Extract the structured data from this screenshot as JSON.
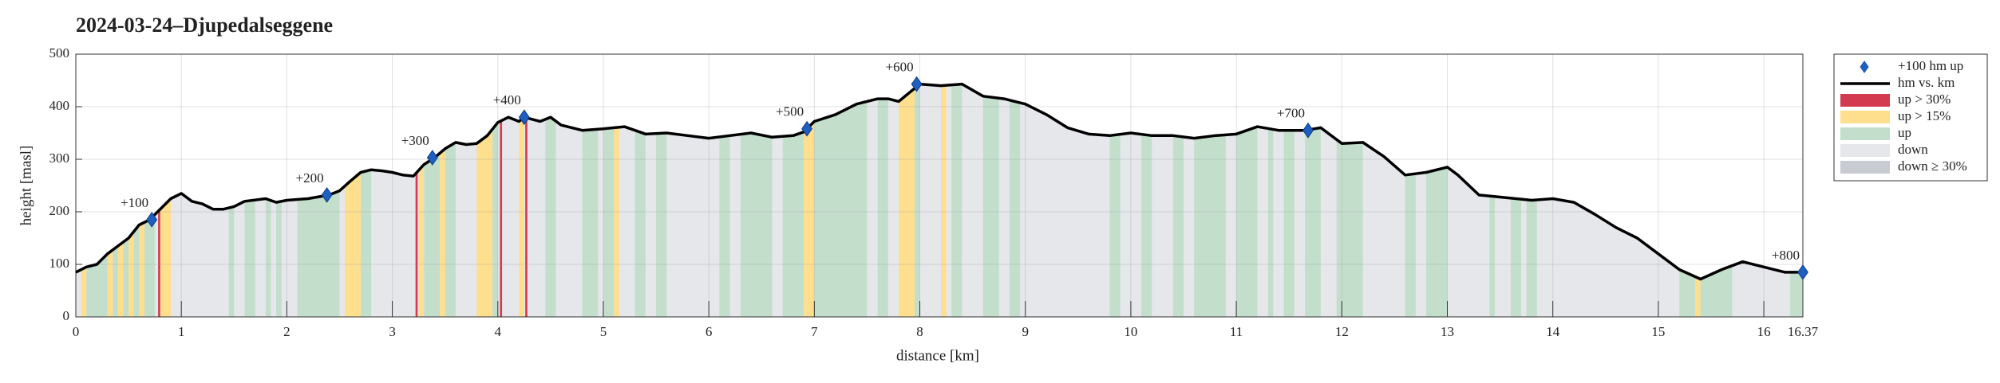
{
  "chart_data": {
    "type": "line",
    "title": "2024-03-24–Djupedalseggene",
    "xlabel": "distance [km]",
    "ylabel": "height [masl]",
    "xlim": [
      0,
      16.37
    ],
    "ylim": [
      0,
      500
    ],
    "xticks": [
      0,
      1,
      2,
      3,
      4,
      5,
      6,
      7,
      8,
      9,
      10,
      11,
      12,
      13,
      14,
      15,
      16,
      16.37
    ],
    "yticks": [
      0,
      100,
      200,
      300,
      400,
      500
    ],
    "grid": true,
    "legend_position": "outside right",
    "series": [
      {
        "name": "hm vs. km",
        "color": "#000000",
        "x": [
          0,
          0.1,
          0.2,
          0.3,
          0.4,
          0.5,
          0.6,
          0.7,
          0.8,
          0.9,
          1.0,
          1.1,
          1.2,
          1.3,
          1.4,
          1.5,
          1.6,
          1.8,
          1.9,
          2.0,
          2.2,
          2.4,
          2.5,
          2.6,
          2.7,
          2.8,
          2.9,
          3.0,
          3.1,
          3.2,
          3.3,
          3.4,
          3.5,
          3.6,
          3.7,
          3.8,
          3.9,
          4.0,
          4.1,
          4.2,
          4.25,
          4.4,
          4.5,
          4.6,
          4.8,
          5.0,
          5.2,
          5.4,
          5.6,
          5.8,
          6.0,
          6.2,
          6.4,
          6.6,
          6.8,
          6.9,
          7.0,
          7.2,
          7.4,
          7.6,
          7.7,
          7.8,
          8.0,
          8.2,
          8.4,
          8.6,
          8.8,
          9.0,
          9.2,
          9.4,
          9.6,
          9.8,
          10.0,
          10.2,
          10.4,
          10.6,
          10.8,
          11.0,
          11.2,
          11.4,
          11.65,
          11.8,
          12.0,
          12.2,
          12.4,
          12.6,
          12.8,
          13.0,
          13.1,
          13.3,
          13.5,
          13.8,
          14.0,
          14.2,
          14.4,
          14.6,
          14.8,
          15.0,
          15.2,
          15.4,
          15.6,
          15.8,
          16.0,
          16.2,
          16.37
        ],
        "values": [
          85,
          95,
          100,
          120,
          135,
          150,
          175,
          185,
          205,
          225,
          235,
          220,
          215,
          205,
          205,
          210,
          220,
          225,
          218,
          222,
          225,
          232,
          240,
          258,
          275,
          280,
          278,
          275,
          270,
          268,
          290,
          303,
          320,
          332,
          328,
          330,
          345,
          370,
          380,
          372,
          380,
          372,
          380,
          365,
          355,
          358,
          362,
          348,
          350,
          345,
          340,
          345,
          350,
          342,
          345,
          352,
          372,
          385,
          405,
          415,
          415,
          410,
          443,
          440,
          443,
          420,
          415,
          405,
          385,
          360,
          348,
          345,
          350,
          345,
          345,
          340,
          345,
          348,
          362,
          355,
          355,
          360,
          330,
          332,
          305,
          270,
          275,
          285,
          270,
          232,
          228,
          222,
          225,
          218,
          195,
          170,
          150,
          120,
          90,
          72,
          90,
          105,
          95,
          85,
          85
        ]
      }
    ],
    "markers": {
      "name": "+100 hm up",
      "color": "#1f5fbf",
      "x": [
        0.72,
        2.38,
        3.38,
        4.25,
        6.93,
        7.97,
        11.68,
        16.37
      ],
      "values": [
        185,
        232,
        303,
        380,
        358,
        443,
        355,
        85
      ],
      "labels": [
        "+100",
        "+200",
        "+300",
        "+400",
        "+500",
        "+600",
        "+700",
        "+800"
      ]
    },
    "legend": [
      {
        "name": "up > 30%",
        "color": "#d43a4f"
      },
      {
        "name": "up > 15%",
        "color": "#fddf8e"
      },
      {
        "name": "up",
        "color": "#c3dfcc"
      },
      {
        "name": "down",
        "color": "#e6e7eb"
      },
      {
        "name": "down ≥ 30%",
        "color": "#c8cbd1"
      }
    ],
    "bands": [
      {
        "x0": 0.1,
        "x1": 0.3,
        "kind": "up"
      },
      {
        "x0": 0.35,
        "x1": 0.4,
        "kind": "up"
      },
      {
        "x0": 0.45,
        "x1": 0.5,
        "kind": "up"
      },
      {
        "x0": 0.55,
        "x1": 0.6,
        "kind": "up"
      },
      {
        "x0": 0.65,
        "x1": 0.75,
        "kind": "up"
      },
      {
        "x0": 0.05,
        "x1": 0.1,
        "kind": "up > 15%"
      },
      {
        "x0": 0.3,
        "x1": 0.35,
        "kind": "up > 15%"
      },
      {
        "x0": 0.4,
        "x1": 0.45,
        "kind": "up > 15%"
      },
      {
        "x0": 0.5,
        "x1": 0.55,
        "kind": "up > 15%"
      },
      {
        "x0": 0.6,
        "x1": 0.65,
        "kind": "up > 15%"
      },
      {
        "x0": 0.8,
        "x1": 0.9,
        "kind": "up > 15%"
      },
      {
        "x0": 0.78,
        "x1": 0.8,
        "kind": "up > 30%"
      },
      {
        "x0": 1.45,
        "x1": 1.5,
        "kind": "up"
      },
      {
        "x0": 1.6,
        "x1": 1.7,
        "kind": "up"
      },
      {
        "x0": 1.8,
        "x1": 1.85,
        "kind": "up"
      },
      {
        "x0": 1.9,
        "x1": 1.95,
        "kind": "up"
      },
      {
        "x0": 2.1,
        "x1": 2.5,
        "kind": "up"
      },
      {
        "x0": 2.55,
        "x1": 2.7,
        "kind": "up > 15%"
      },
      {
        "x0": 2.7,
        "x1": 2.8,
        "kind": "up"
      },
      {
        "x0": 3.22,
        "x1": 3.24,
        "kind": "up > 30%"
      },
      {
        "x0": 3.25,
        "x1": 3.3,
        "kind": "up > 15%"
      },
      {
        "x0": 3.3,
        "x1": 3.45,
        "kind": "up"
      },
      {
        "x0": 3.45,
        "x1": 3.5,
        "kind": "up > 15%"
      },
      {
        "x0": 3.5,
        "x1": 3.6,
        "kind": "up"
      },
      {
        "x0": 3.8,
        "x1": 3.95,
        "kind": "up > 15%"
      },
      {
        "x0": 3.95,
        "x1": 4.0,
        "kind": "up"
      },
      {
        "x0": 4.02,
        "x1": 4.04,
        "kind": "up > 30%"
      },
      {
        "x0": 4.2,
        "x1": 4.25,
        "kind": "up > 15%"
      },
      {
        "x0": 4.26,
        "x1": 4.28,
        "kind": "up > 30%"
      },
      {
        "x0": 4.45,
        "x1": 4.55,
        "kind": "up"
      },
      {
        "x0": 4.8,
        "x1": 4.95,
        "kind": "up"
      },
      {
        "x0": 5.0,
        "x1": 5.1,
        "kind": "up"
      },
      {
        "x0": 5.1,
        "x1": 5.15,
        "kind": "up > 15%"
      },
      {
        "x0": 5.3,
        "x1": 5.4,
        "kind": "up"
      },
      {
        "x0": 5.5,
        "x1": 5.6,
        "kind": "up"
      },
      {
        "x0": 6.1,
        "x1": 6.2,
        "kind": "up"
      },
      {
        "x0": 6.3,
        "x1": 6.6,
        "kind": "up"
      },
      {
        "x0": 6.7,
        "x1": 6.9,
        "kind": "up"
      },
      {
        "x0": 6.9,
        "x1": 7.0,
        "kind": "up > 15%"
      },
      {
        "x0": 7.0,
        "x1": 7.5,
        "kind": "up"
      },
      {
        "x0": 7.6,
        "x1": 7.7,
        "kind": "up"
      },
      {
        "x0": 7.8,
        "x1": 7.95,
        "kind": "up > 15%"
      },
      {
        "x0": 7.95,
        "x1": 8.0,
        "kind": "up"
      },
      {
        "x0": 8.2,
        "x1": 8.25,
        "kind": "up > 15%"
      },
      {
        "x0": 8.3,
        "x1": 8.4,
        "kind": "up"
      },
      {
        "x0": 8.6,
        "x1": 8.75,
        "kind": "up"
      },
      {
        "x0": 8.85,
        "x1": 8.95,
        "kind": "up"
      },
      {
        "x0": 9.8,
        "x1": 9.9,
        "kind": "up"
      },
      {
        "x0": 10.1,
        "x1": 10.2,
        "kind": "up"
      },
      {
        "x0": 10.4,
        "x1": 10.5,
        "kind": "up"
      },
      {
        "x0": 10.6,
        "x1": 10.9,
        "kind": "up"
      },
      {
        "x0": 11.0,
        "x1": 11.2,
        "kind": "up"
      },
      {
        "x0": 11.3,
        "x1": 11.35,
        "kind": "up"
      },
      {
        "x0": 11.45,
        "x1": 11.55,
        "kind": "up"
      },
      {
        "x0": 11.65,
        "x1": 11.8,
        "kind": "up"
      },
      {
        "x0": 11.95,
        "x1": 12.2,
        "kind": "up"
      },
      {
        "x0": 12.6,
        "x1": 12.7,
        "kind": "up"
      },
      {
        "x0": 12.8,
        "x1": 13.0,
        "kind": "up"
      },
      {
        "x0": 13.4,
        "x1": 13.45,
        "kind": "up"
      },
      {
        "x0": 13.6,
        "x1": 13.7,
        "kind": "up"
      },
      {
        "x0": 13.75,
        "x1": 13.85,
        "kind": "up"
      },
      {
        "x0": 15.2,
        "x1": 15.35,
        "kind": "up"
      },
      {
        "x0": 15.35,
        "x1": 15.4,
        "kind": "up > 15%"
      },
      {
        "x0": 15.4,
        "x1": 15.7,
        "kind": "up"
      },
      {
        "x0": 16.25,
        "x1": 16.37,
        "kind": "up"
      }
    ]
  }
}
